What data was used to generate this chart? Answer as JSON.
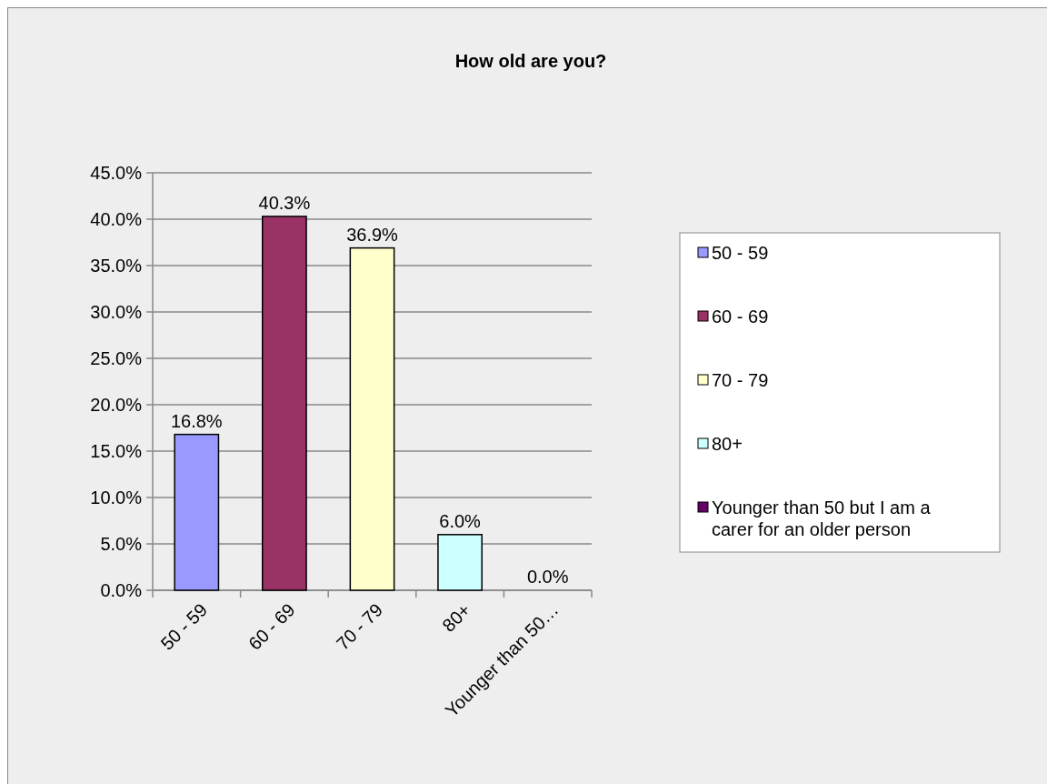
{
  "chart_data": {
    "type": "bar",
    "title": "How old are you?",
    "categories": [
      "50 - 59",
      "60 - 69",
      "70 - 79",
      "80+",
      "Younger than 50…"
    ],
    "stacked": true,
    "series": [
      {
        "name": "50 - 59",
        "color": "#9999ff",
        "values": [
          16.8,
          null,
          null,
          null,
          null
        ],
        "value_labels": [
          "16.8%",
          null,
          null,
          null,
          null
        ]
      },
      {
        "name": "60 - 69",
        "color": "#993366",
        "values": [
          null,
          40.3,
          null,
          null,
          null
        ],
        "value_labels": [
          null,
          "40.3%",
          null,
          null,
          null
        ]
      },
      {
        "name": "70 - 79",
        "color": "#ffffcc",
        "values": [
          null,
          null,
          36.9,
          null,
          null
        ],
        "value_labels": [
          null,
          null,
          "36.9%",
          null,
          null
        ]
      },
      {
        "name": "80+",
        "color": "#ccffff",
        "values": [
          null,
          null,
          null,
          6.0,
          null
        ],
        "value_labels": [
          null,
          null,
          null,
          "6.0%",
          null
        ]
      },
      {
        "name": "Younger than 50 but I am a carer for an older person",
        "color": "#660066",
        "values": [
          null,
          null,
          null,
          null,
          0
        ],
        "value_labels": [
          null,
          null,
          null,
          null,
          "0.0%"
        ]
      }
    ],
    "ylim": [
      0,
      45
    ],
    "yticks": [
      {
        "value": 0,
        "label": "0.0%"
      },
      {
        "value": 5,
        "label": "5.0%"
      },
      {
        "value": 10,
        "label": "10.0%"
      },
      {
        "value": 15,
        "label": "15.0%"
      },
      {
        "value": 20,
        "label": "20.0%"
      },
      {
        "value": 25,
        "label": "25.0%"
      },
      {
        "value": 30,
        "label": "30.0%"
      },
      {
        "value": 35,
        "label": "35.0%"
      },
      {
        "value": 40,
        "label": "40.0%"
      },
      {
        "value": 45,
        "label": "45.0%"
      }
    ],
    "grid": "y",
    "legend": "right"
  }
}
